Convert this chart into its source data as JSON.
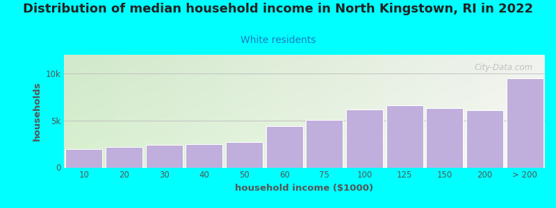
{
  "title": "Distribution of median household income in North Kingstown, RI in 2022",
  "subtitle": "White residents",
  "xlabel": "household income ($1000)",
  "ylabel": "households",
  "background_outer": "#00FFFF",
  "background_inner_left": "#d8f0d0",
  "background_inner_right": "#f0f8f8",
  "background_inner_top": "#f5f5f2",
  "background_inner_bottom": "#d8f0d0",
  "bar_color": "#c0aedd",
  "categories": [
    "10",
    "20",
    "30",
    "40",
    "50",
    "60",
    "75",
    "100",
    "125",
    "150",
    "200",
    "> 200"
  ],
  "values": [
    2000,
    2200,
    2400,
    2500,
    2700,
    4400,
    5100,
    6200,
    6600,
    6300,
    6100,
    9500
  ],
  "ylim": [
    0,
    12000
  ],
  "ytick_vals": [
    0,
    5000,
    10000
  ],
  "ytick_labels": [
    "0",
    "5k",
    "10k"
  ],
  "title_fontsize": 13,
  "subtitle_fontsize": 10,
  "axis_label_fontsize": 9.5,
  "tick_fontsize": 8.5,
  "watermark": "City-Data.com",
  "title_color": "#222222",
  "subtitle_color": "#1a7bbf",
  "axis_label_color": "#555555",
  "tick_color": "#555555",
  "grid_color": "#bbbbbb",
  "watermark_color": "#b0b0b0"
}
